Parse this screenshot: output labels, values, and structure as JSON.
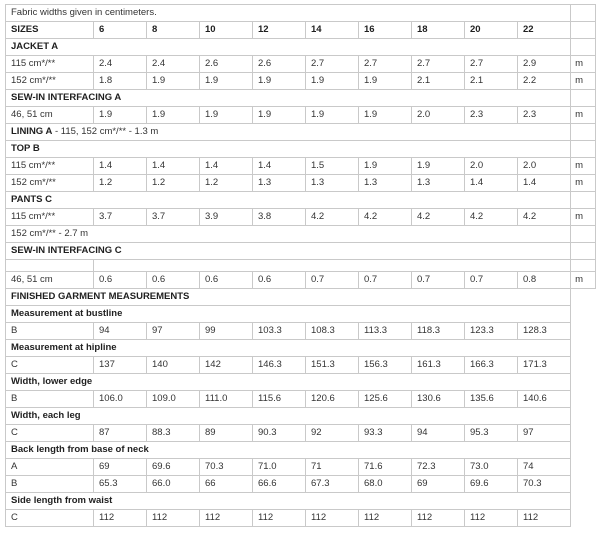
{
  "page_title": "Fabric widths and finished garment measurements table",
  "colors": {
    "border": "#c9c9c9",
    "text": "#333333",
    "bold_text": "#1f1f1f",
    "background": "#ffffff"
  },
  "table": {
    "sizes": [
      "6",
      "8",
      "10",
      "12",
      "14",
      "16",
      "18",
      "20",
      "22"
    ],
    "unit_symbol": "m",
    "rows": [
      {
        "kind": "full",
        "text": "Fabric widths given in centimeters.",
        "bold": false,
        "m": "",
        "mb": true
      },
      {
        "kind": "sizes",
        "label": "SIZES",
        "m": "",
        "mb": true
      },
      {
        "kind": "full",
        "text": "JACKET A",
        "bold": true,
        "m": "",
        "mb": true
      },
      {
        "kind": "data",
        "label": "115 cm*/**",
        "values": [
          "2.4",
          "2.4",
          "2.6",
          "2.6",
          "2.7",
          "2.7",
          "2.7",
          "2.7",
          "2.9"
        ],
        "m": "m",
        "mb": true
      },
      {
        "kind": "data",
        "label": "152 cm*/**",
        "values": [
          "1.8",
          "1.9",
          "1.9",
          "1.9",
          "1.9",
          "1.9",
          "2.1",
          "2.1",
          "2.2"
        ],
        "m": "m",
        "mb": true
      },
      {
        "kind": "full",
        "text": "SEW-IN INTERFACING A",
        "bold": true,
        "m": "",
        "mb": true
      },
      {
        "kind": "data",
        "label": "46, 51 cm",
        "values": [
          "1.9",
          "1.9",
          "1.9",
          "1.9",
          "1.9",
          "1.9",
          "2.0",
          "2.3",
          "2.3"
        ],
        "m": "m",
        "mb": true
      },
      {
        "kind": "full",
        "prefix": "LINING A",
        "text": " - 115, 152 cm*/** - 1.3 m",
        "bold": false,
        "m": "",
        "mb": true
      },
      {
        "kind": "full",
        "text": "TOP B",
        "bold": true,
        "m": "",
        "mb": true
      },
      {
        "kind": "data",
        "label": "115 cm*/**",
        "values": [
          "1.4",
          "1.4",
          "1.4",
          "1.4",
          "1.5",
          "1.9",
          "1.9",
          "2.0",
          "2.0"
        ],
        "m": "m",
        "mb": true
      },
      {
        "kind": "data",
        "label": "152 cm*/**",
        "values": [
          "1.2",
          "1.2",
          "1.2",
          "1.3",
          "1.3",
          "1.3",
          "1.3",
          "1.4",
          "1.4"
        ],
        "m": "m",
        "mb": true
      },
      {
        "kind": "full",
        "text": "PANTS C",
        "bold": true,
        "m": "",
        "mb": true
      },
      {
        "kind": "data",
        "label": "115 cm*/**",
        "values": [
          "3.7",
          "3.7",
          "3.9",
          "3.8",
          "4.2",
          "4.2",
          "4.2",
          "4.2",
          "4.2"
        ],
        "m": "m",
        "mb": true
      },
      {
        "kind": "full",
        "text": "152 cm*/** - 2.7 m",
        "bold": false,
        "m": "",
        "mb": true
      },
      {
        "kind": "full",
        "text": "SEW-IN INTERFACING C",
        "bold": true,
        "m": "",
        "mb": true
      },
      {
        "kind": "empty",
        "m": "",
        "mb": true
      },
      {
        "kind": "data",
        "label": "46, 51 cm",
        "values": [
          "0.6",
          "0.6",
          "0.6",
          "0.6",
          "0.7",
          "0.7",
          "0.7",
          "0.7",
          "0.8"
        ],
        "m": "m",
        "mb": true
      },
      {
        "kind": "full",
        "text": "FINISHED GARMENT MEASUREMENTS",
        "bold": true,
        "m": "",
        "mb": false
      },
      {
        "kind": "full",
        "text": "Measurement at bustline",
        "bold": true,
        "m": "",
        "mb": false
      },
      {
        "kind": "data",
        "label": "B",
        "values": [
          "94",
          "97",
          "99",
          "103.3",
          "108.3",
          "113.3",
          "118.3",
          "123.3",
          "128.3"
        ],
        "m": "",
        "mb": false
      },
      {
        "kind": "full",
        "text": "Measurement at hipline",
        "bold": true,
        "m": "",
        "mb": false
      },
      {
        "kind": "data",
        "label": "C",
        "values": [
          "137",
          "140",
          "142",
          "146.3",
          "151.3",
          "156.3",
          "161.3",
          "166.3",
          "171.3"
        ],
        "m": "",
        "mb": false
      },
      {
        "kind": "full",
        "text": "Width, lower edge",
        "bold": true,
        "m": "",
        "mb": false
      },
      {
        "kind": "data",
        "label": "B",
        "values": [
          "106.0",
          "109.0",
          "111.0",
          "115.6",
          "120.6",
          "125.6",
          "130.6",
          "135.6",
          "140.6"
        ],
        "m": "",
        "mb": false
      },
      {
        "kind": "full",
        "text": "Width, each leg",
        "bold": true,
        "m": "",
        "mb": false
      },
      {
        "kind": "data",
        "label": "C",
        "values": [
          "87",
          "88.3",
          "89",
          "90.3",
          "92",
          "93.3",
          "94",
          "95.3",
          "97"
        ],
        "m": "",
        "mb": false
      },
      {
        "kind": "full",
        "text": "Back length from base of neck",
        "bold": true,
        "m": "",
        "mb": false
      },
      {
        "kind": "data",
        "label": "A",
        "values": [
          "69",
          "69.6",
          "70.3",
          "71.0",
          "71",
          "71.6",
          "72.3",
          "73.0",
          "74"
        ],
        "m": "",
        "mb": false
      },
      {
        "kind": "data",
        "label": "B",
        "values": [
          "65.3",
          "66.0",
          "66",
          "66.6",
          "67.3",
          "68.0",
          "69",
          "69.6",
          "70.3"
        ],
        "m": "",
        "mb": false
      },
      {
        "kind": "full",
        "text": "Side length from waist",
        "bold": true,
        "m": "",
        "mb": false
      },
      {
        "kind": "data",
        "label": "C",
        "values": [
          "112",
          "112",
          "112",
          "112",
          "112",
          "112",
          "112",
          "112",
          "112"
        ],
        "m": "",
        "mb": false
      }
    ]
  }
}
